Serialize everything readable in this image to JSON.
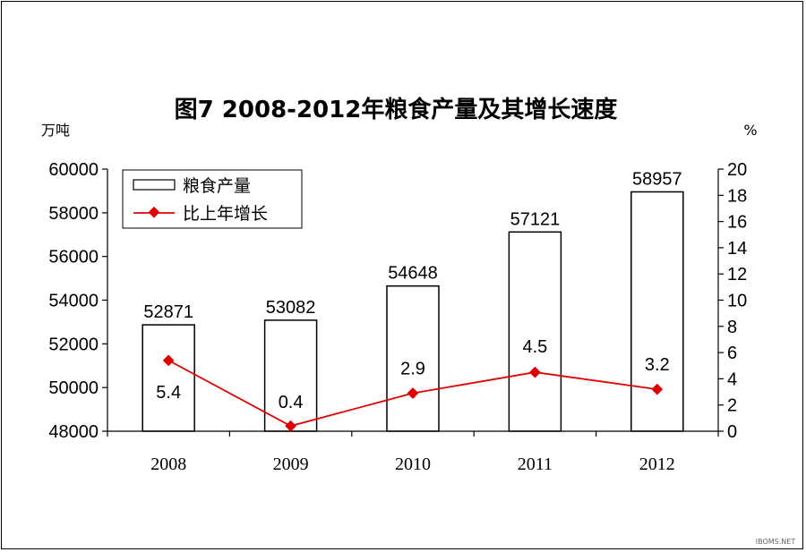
{
  "chart_data": {
    "type": "bar+line",
    "title": "图7   2008-2012年粮食产量及其增长速度",
    "categories": [
      "2008",
      "2009",
      "2010",
      "2011",
      "2012"
    ],
    "left_axis": {
      "unit": "万吨",
      "min": 48000,
      "max": 60000,
      "ticks": [
        48000,
        50000,
        52000,
        54000,
        56000,
        58000,
        60000
      ]
    },
    "right_axis": {
      "unit": "%",
      "min": 0,
      "max": 20,
      "ticks": [
        0,
        2,
        4,
        6,
        8,
        10,
        12,
        14,
        16,
        18,
        20
      ]
    },
    "series": [
      {
        "name": "粮食产量",
        "type": "bar",
        "axis": "left",
        "values": [
          52871,
          53082,
          54648,
          57121,
          58957
        ],
        "color": "#000000",
        "fill": "#ffffff"
      },
      {
        "name": "比上年增长",
        "type": "line",
        "axis": "right",
        "values": [
          5.4,
          0.4,
          2.9,
          4.5,
          3.2
        ],
        "color": "#e00000"
      }
    ],
    "legend_position": "top-left",
    "grid": false
  },
  "watermark": "IBOMS.NET"
}
